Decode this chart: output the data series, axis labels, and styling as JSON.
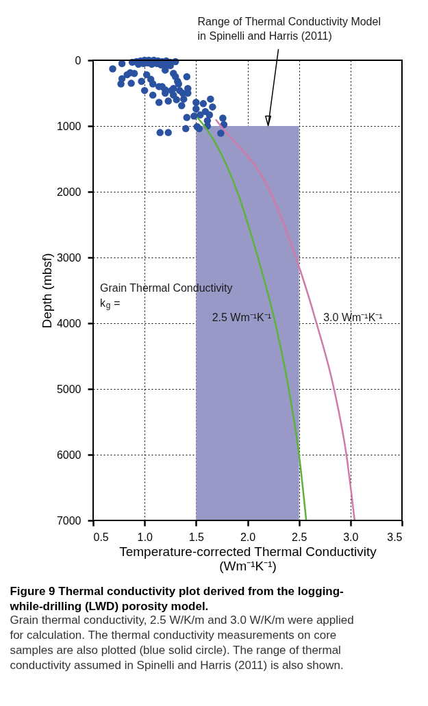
{
  "chart_data": {
    "type": "scatter",
    "title": "Figure 9 Thermal conductivity plot derived from the logging-while-drilling (LWD) porosity model.",
    "subtitle": "Grain thermal conductivity, 2.5 W/K/m and 3.0 W/K/m were applied for calculation. The thermal conductivity measurements on core samples are also plotted (blue solid circle). The range of thermal conductivity assumed in Spinelli and Harris (2011) is also shown.",
    "xlabel": "Temperature-corrected Thermal Conductivity (Wm⁻¹K⁻¹)",
    "ylabel": "Depth (mbsf)",
    "xlim": [
      0.5,
      3.5
    ],
    "xticks": [
      {
        "value": 0.5,
        "label": "0.5"
      },
      {
        "value": 1.0,
        "label": "1.0"
      },
      {
        "value": 1.5,
        "label": "1.5"
      },
      {
        "value": 2.0,
        "label": "2.0"
      },
      {
        "value": 2.5,
        "label": "2.5"
      },
      {
        "value": 3.0,
        "label": "3.0"
      },
      {
        "value": 3.5,
        "label": "3.5"
      }
    ],
    "ylim": [
      7000,
      0
    ],
    "yticks": [
      0,
      1000,
      2000,
      3000,
      4000,
      5000,
      6000,
      7000
    ],
    "grid": true,
    "series": [
      {
        "color": "#2a52a0",
        "marker": "circle",
        "x": [
          0.69,
          0.78,
          0.77,
          0.78,
          0.87,
          0.83,
          0.86,
          0.88,
          0.92,
          0.96,
          1.0,
          1.04,
          1.09,
          1.13,
          1.17,
          1.21,
          1.25,
          1.3,
          0.94,
          0.99,
          1.03,
          1.07,
          1.12,
          1.16,
          1.21,
          1.25,
          0.9,
          1.02,
          1.28,
          1.2,
          1.3,
          1.32,
          1.08,
          0.97,
          1.33,
          1.41,
          1.06,
          1.14,
          1.2,
          1.28,
          1.37,
          1.0,
          1.08,
          1.14,
          1.2,
          1.28,
          1.34,
          1.38,
          1.42,
          1.42,
          1.36,
          1.23,
          1.31,
          1.17,
          1.26,
          1.5,
          1.57,
          1.64,
          1.66,
          1.5,
          1.59,
          1.63,
          1.41,
          1.48,
          1.54,
          1.61,
          1.61,
          1.51,
          1.53,
          1.4,
          1.15,
          1.23,
          1.76,
          1.77,
          1.74
        ],
        "values": [
          130,
          50,
          360,
          280,
          350,
          220,
          190,
          30,
          20,
          10,
          0,
          0,
          0,
          10,
          20,
          10,
          30,
          20,
          60,
          50,
          40,
          60,
          50,
          70,
          60,
          80,
          200,
          220,
          200,
          150,
          250,
          320,
          360,
          320,
          360,
          250,
          290,
          400,
          450,
          430,
          500,
          460,
          530,
          640,
          500,
          530,
          460,
          590,
          500,
          430,
          690,
          620,
          600,
          400,
          460,
          640,
          660,
          590,
          710,
          740,
          780,
          830,
          870,
          850,
          830,
          920,
          1000,
          1010,
          1040,
          1040,
          1100,
          1100,
          880,
          980,
          1110
        ]
      },
      {
        "type": "line",
        "color": "#5db33a",
        "line_style": "solid",
        "marker": "none",
        "x": [
          1.51,
          1.58,
          1.9,
          2.1,
          2.27,
          2.4,
          2.5,
          2.57
        ],
        "values": [
          870,
          1000,
          2000,
          3000,
          4000,
          5000,
          6000,
          7000
        ]
      },
      {
        "type": "line",
        "color": "#d07aa8",
        "line_style": "solid",
        "marker": "none",
        "x": [
          1.69,
          1.74,
          2.22,
          2.47,
          2.67,
          2.84,
          2.96,
          3.04
        ],
        "values": [
          900,
          1000,
          2000,
          3000,
          4000,
          5000,
          6000,
          7000
        ]
      }
    ],
    "bands": [
      {
        "axis": "x",
        "from": 1.5,
        "to": 2.5,
        "color": "#9999c8"
      }
    ],
    "annotations": [
      {
        "text": "Range of Thermal Conductivity Model in Spinelli and Harris (2011)",
        "x": 2.2,
        "y": 1000
      },
      "Grain Thermal Conductivity",
      "k$_{g}$ =",
      {
        "text": "2.5 Wm⁻¹K⁻¹",
        "x": 2.27,
        "y": 4000
      },
      {
        "text": "3.0 Wm⁻¹K⁻¹",
        "x": 2.67,
        "y": 4000
      }
    ]
  }
}
